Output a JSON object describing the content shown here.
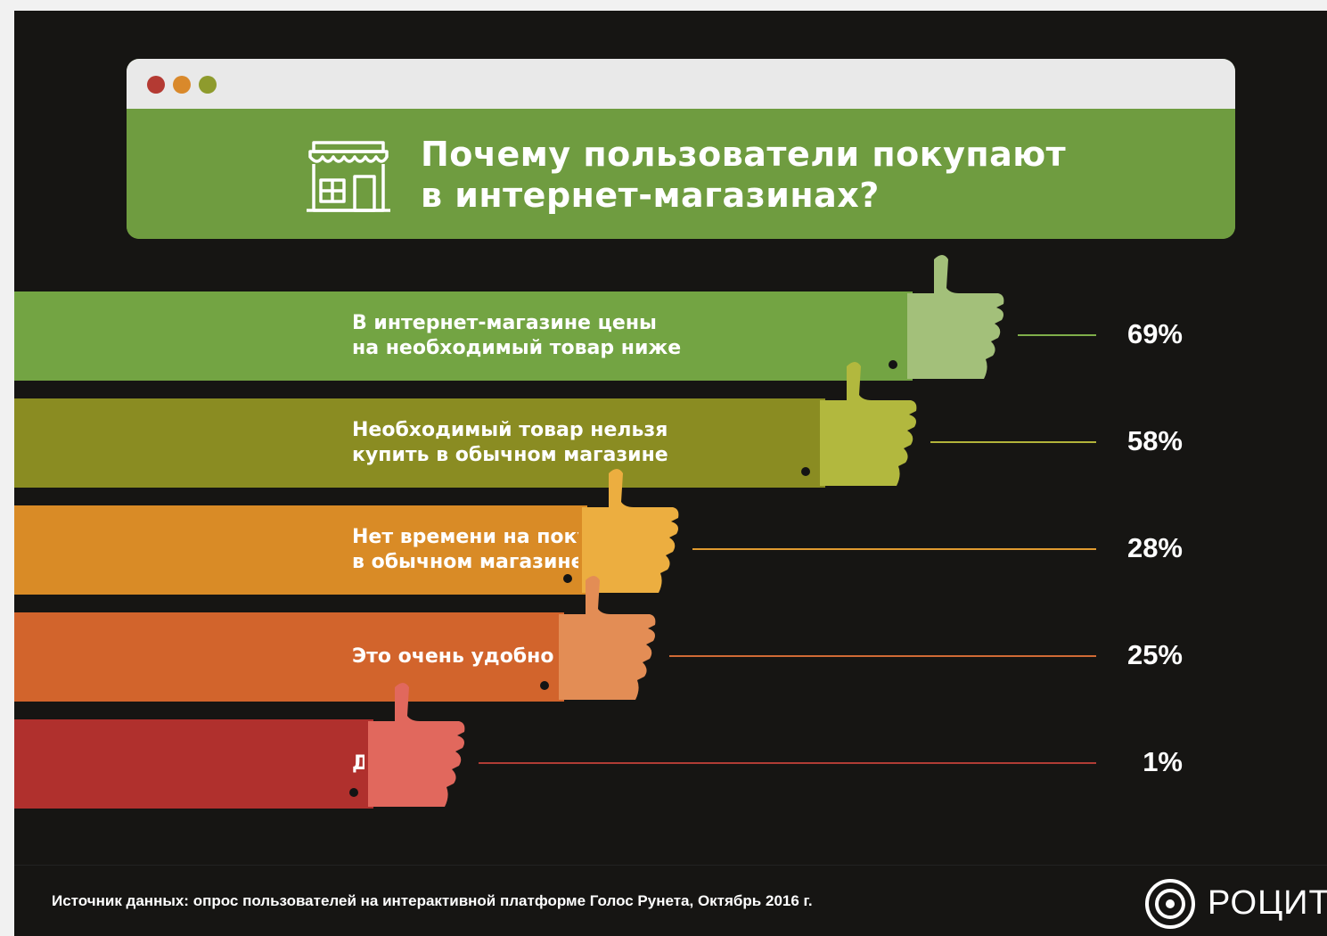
{
  "title": {
    "line1": "Почему пользователи покупают",
    "line2": "в интернет-магазинах?"
  },
  "icons": {
    "store": "store-icon",
    "thumb": "thumbs-up-icon",
    "logo": "target-circle-icon"
  },
  "colors": {
    "background": "#161513",
    "header_green": "#6f9c40"
  },
  "chart_data": {
    "type": "bar",
    "title": "Почему пользователи покупают в интернет-магазинах?",
    "categories": [
      "В интернет-магазине цены на необходимый товар ниже",
      "Необходимый товар нельзя купить в обычном магазине",
      "Нет времени на покупку в обычном магазине",
      "Это очень удобно",
      "Другое"
    ],
    "series": [
      {
        "values": [
          69,
          58,
          28,
          25,
          1
        ]
      }
    ],
    "value_unit": "%",
    "xlabel": "",
    "ylabel": "",
    "grid": false,
    "bars": [
      {
        "lines": [
          "В интернет-магазине цены",
          "на необходимый товар ниже"
        ],
        "value": 69,
        "value_label": "69%",
        "color": "#73a443",
        "thumb_color": "#a3c07a",
        "line_color": "#7fae4a"
      },
      {
        "lines": [
          "Необходимый товар нельзя",
          "купить в обычном магазине"
        ],
        "value": 58,
        "value_label": "58%",
        "color": "#8a8c22",
        "thumb_color": "#b2b83e",
        "line_color": "#b2b33a"
      },
      {
        "lines": [
          "Нет времени на покупку",
          "в обычном магазине"
        ],
        "value": 28,
        "value_label": "28%",
        "color": "#d98b26",
        "thumb_color": "#ecae40",
        "line_color": "#e09a30"
      },
      {
        "lines": [
          "Это очень удобно"
        ],
        "value": 25,
        "value_label": "25%",
        "color": "#d2642c",
        "thumb_color": "#e38d55",
        "line_color": "#d06a35"
      },
      {
        "lines": [
          "Другое"
        ],
        "value": 1,
        "value_label": "1%",
        "color": "#b0302d",
        "thumb_color": "#e1685d",
        "line_color": "#b03c35"
      }
    ]
  },
  "footer": {
    "source": "Источник данных: опрос пользователей на интерактивной платформе Голос Рунета, Октябрь 2016 г.",
    "logo_text": "РОЦИТ"
  }
}
